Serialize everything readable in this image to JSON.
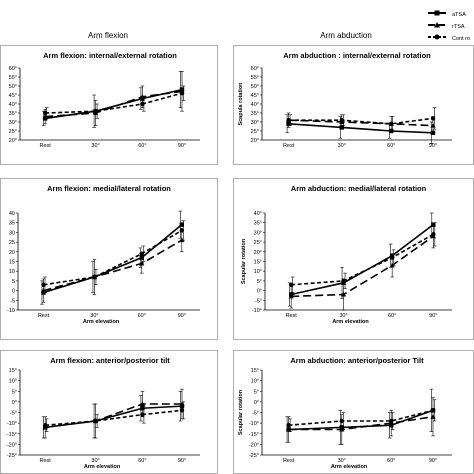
{
  "column_titles": [
    "Arm flexion",
    "Arm abduction"
  ],
  "legend": {
    "placement": "top-right",
    "entries": [
      {
        "label": "aTSA",
        "dash": "solid",
        "marker": "square"
      },
      {
        "label": "rTSA",
        "dash": "long-dash",
        "marker": "triangle"
      },
      {
        "label": "Cont ro",
        "dash": "short-dash",
        "marker": "circle"
      }
    ]
  },
  "chart_data": [
    {
      "type": "line",
      "title": "Arm flexion: internal/external rotation",
      "categories": [
        "Rest",
        "30°",
        "60°",
        "90°"
      ],
      "xlabel": "",
      "ylabel": "",
      "ylim": [
        20,
        60
      ],
      "yticks": [
        "20°",
        "25°",
        "30°",
        "35°",
        "40°",
        "45°",
        "50°",
        "55°",
        "60°"
      ],
      "grid": false,
      "series": [
        {
          "name": "aTSA",
          "values": [
            32,
            36,
            43,
            48
          ],
          "err": [
            4,
            9,
            6,
            10
          ]
        },
        {
          "name": "rTSA",
          "values": [
            33,
            35,
            44,
            47
          ],
          "err": [
            4,
            7,
            6,
            11
          ]
        },
        {
          "name": "Cont ro",
          "values": [
            35,
            36,
            40,
            46
          ],
          "err": [
            3,
            4,
            4,
            4
          ]
        }
      ]
    },
    {
      "type": "line",
      "title": "Arm abduction : internal/external rotation",
      "categories": [
        "Rest",
        "30°",
        "60°",
        "90°"
      ],
      "xlabel": "",
      "ylabel": "Scapula rotation",
      "ylim": [
        20,
        60
      ],
      "yticks": [
        "20°",
        "25°",
        "30°",
        "35°",
        "40°",
        "45°",
        "50°",
        "55°",
        "60°"
      ],
      "grid": false,
      "series": [
        {
          "name": "aTSA",
          "values": [
            29,
            27,
            25,
            24
          ],
          "err": [
            5,
            6,
            4,
            6
          ]
        },
        {
          "name": "rTSA",
          "values": [
            31,
            30,
            29,
            28
          ],
          "err": [
            4,
            4,
            4,
            5
          ]
        },
        {
          "name": "Cont ro",
          "values": [
            31,
            31,
            29,
            32
          ],
          "err": [
            3,
            3,
            4,
            6
          ]
        }
      ]
    },
    {
      "type": "line",
      "title": "Arm flexion: medial/lateral rotation",
      "categories": [
        "Rest",
        "30°",
        "60°",
        "90°"
      ],
      "xlabel": "Arm elevation",
      "ylabel": "",
      "ylim": [
        -10,
        40
      ],
      "yticks": [
        "-10",
        "-5",
        "0",
        "5",
        "10",
        "15",
        "20",
        "25",
        "30",
        "35",
        "40"
      ],
      "grid": false,
      "series": [
        {
          "name": "aTSA",
          "values": [
            -1,
            7,
            17,
            34
          ],
          "err": [
            6,
            8,
            5,
            7
          ]
        },
        {
          "name": "rTSA",
          "values": [
            0,
            7,
            14,
            26
          ],
          "err": [
            6,
            9,
            5,
            6
          ]
        },
        {
          "name": "Cont ro",
          "values": [
            3,
            7,
            19,
            31
          ],
          "err": [
            4,
            4,
            4,
            5
          ]
        }
      ]
    },
    {
      "type": "line",
      "title": "Arm abduction: medial/lateral rotation",
      "categories": [
        "Rest",
        "30°",
        "60°",
        "90°"
      ],
      "xlabel": "Arm elevation",
      "ylabel": "Scapular rotation",
      "ylim": [
        -10,
        40
      ],
      "yticks": [
        "-10°",
        "-5°",
        "0°",
        "5°",
        "10°",
        "15°",
        "20°",
        "25°",
        "30°",
        "35°",
        "40°"
      ],
      "grid": false,
      "series": [
        {
          "name": "aTSA",
          "values": [
            -2,
            4,
            18,
            34
          ],
          "err": [
            6,
            8,
            6,
            6
          ]
        },
        {
          "name": "rTSA",
          "values": [
            -3,
            -2,
            13,
            28
          ],
          "err": [
            6,
            8,
            6,
            6
          ]
        },
        {
          "name": "Cont ro",
          "values": [
            3,
            5,
            17,
            29
          ],
          "err": [
            4,
            4,
            4,
            6
          ]
        }
      ]
    },
    {
      "type": "line",
      "title": "Arm flexion: anterior/posterior tilt",
      "categories": [
        "Rest",
        "30°",
        "60°",
        "90°"
      ],
      "xlabel": "Arm elevation",
      "ylabel": "",
      "ylim": [
        -25,
        15
      ],
      "yticks": [
        "-25°",
        "-20°",
        "-15°",
        "-10°",
        "-5°",
        "0°",
        "5°",
        "10°",
        "15°"
      ],
      "grid": false,
      "series": [
        {
          "name": "aTSA",
          "values": [
            -12,
            -9,
            -3,
            -2
          ],
          "err": [
            5,
            8,
            6,
            7
          ]
        },
        {
          "name": "rTSA",
          "values": [
            -12,
            -9,
            -1,
            -1
          ],
          "err": [
            5,
            8,
            6,
            7
          ]
        },
        {
          "name": "Cont ro",
          "values": [
            -11,
            -9,
            -6,
            -4
          ],
          "err": [
            3,
            3,
            4,
            4
          ]
        }
      ]
    },
    {
      "type": "line",
      "title": "Arm abduction: anterior/posterior Tilt",
      "categories": [
        "Rest",
        "30°",
        "60°",
        "90°"
      ],
      "xlabel": "Arm elevation",
      "ylabel": "Scapular rotation",
      "ylim": [
        -25,
        15
      ],
      "yticks": [
        "-25°",
        "-20°",
        "-15°",
        "-10°",
        "-5°",
        "0°",
        "5°",
        "10°",
        "15°"
      ],
      "grid": false,
      "series": [
        {
          "name": "aTSA",
          "values": [
            -13,
            -12,
            -11,
            -4
          ],
          "err": [
            6,
            8,
            6,
            10
          ]
        },
        {
          "name": "rTSA",
          "values": [
            -13,
            -13,
            -10,
            -7
          ],
          "err": [
            6,
            7,
            6,
            9
          ]
        },
        {
          "name": "Cont ro",
          "values": [
            -11,
            -9,
            -9,
            -4
          ],
          "err": [
            3,
            4,
            4,
            5
          ]
        }
      ]
    }
  ]
}
